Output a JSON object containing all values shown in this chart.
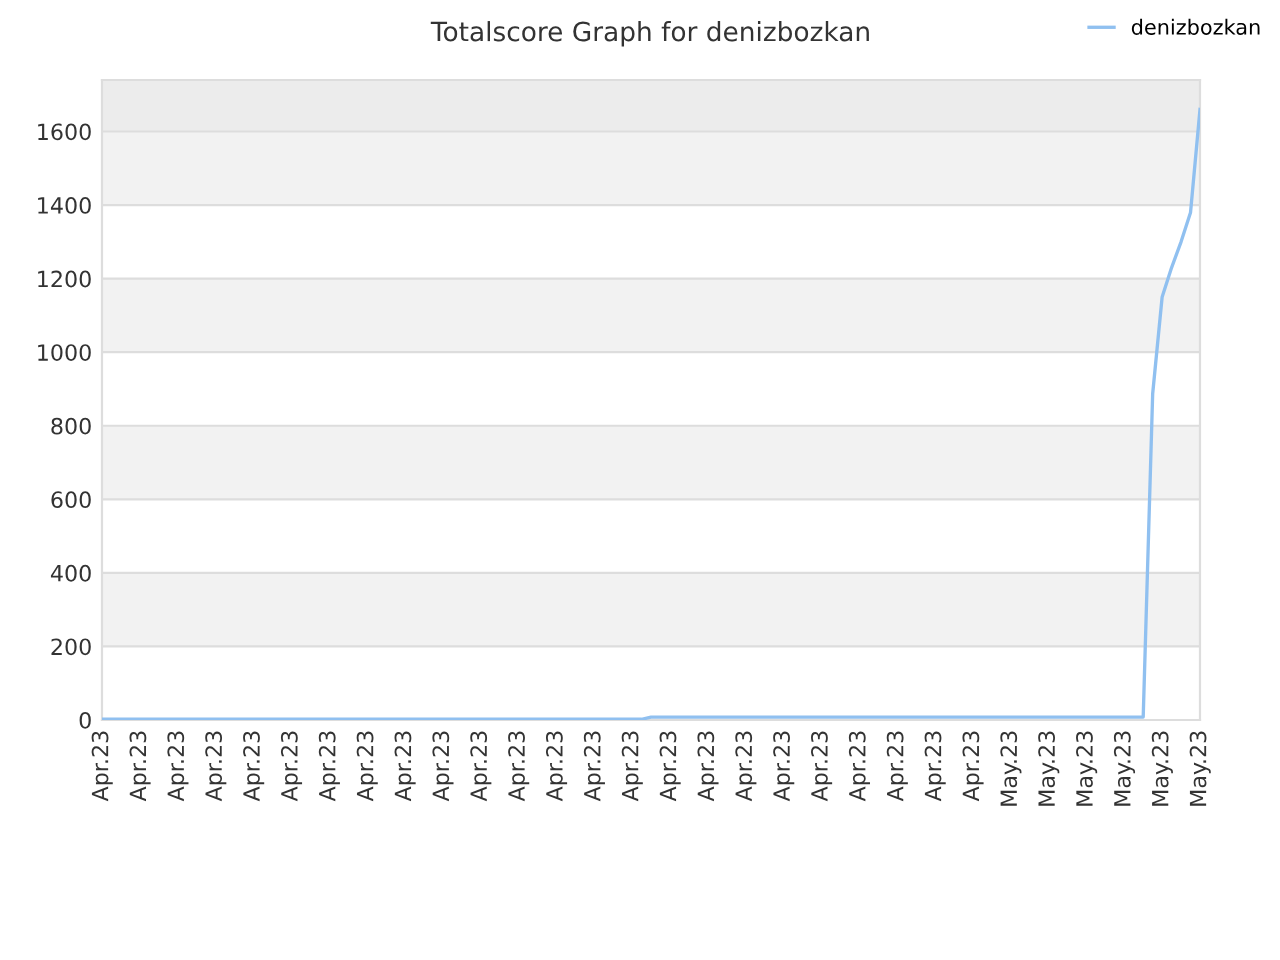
{
  "chart_data": {
    "type": "line",
    "title": "Totalscore Graph for denizbozkan",
    "categories": [
      "Apr.23",
      null,
      null,
      null,
      "Apr.23",
      null,
      null,
      null,
      "Apr.23",
      null,
      null,
      null,
      "Apr.23",
      null,
      null,
      null,
      "Apr.23",
      null,
      null,
      null,
      "Apr.23",
      null,
      null,
      null,
      "Apr.23",
      null,
      null,
      null,
      "Apr.23",
      null,
      null,
      null,
      "Apr.23",
      null,
      null,
      null,
      "Apr.23",
      null,
      null,
      null,
      "Apr.23",
      null,
      null,
      null,
      "Apr.23",
      null,
      null,
      null,
      "Apr.23",
      null,
      null,
      null,
      "Apr.23",
      null,
      null,
      null,
      "Apr.23",
      null,
      null,
      null,
      "Apr.23",
      null,
      null,
      null,
      "Apr.23",
      null,
      null,
      null,
      "Apr.23",
      null,
      null,
      null,
      "Apr.23",
      null,
      null,
      null,
      "Apr.23",
      null,
      null,
      null,
      "Apr.23",
      null,
      null,
      null,
      "Apr.23",
      null,
      null,
      null,
      "Apr.23",
      null,
      null,
      null,
      "Apr.23",
      null,
      null,
      null,
      "May.23",
      null,
      null,
      null,
      "May.23",
      null,
      null,
      null,
      "May.23",
      null,
      null,
      null,
      "May.23",
      null,
      null,
      null,
      "May.23",
      null,
      null,
      null,
      "May.23"
    ],
    "series": [
      {
        "name": "denizbozkan",
        "color": "#90c0f0",
        "values": [
          2,
          2,
          2,
          2,
          2,
          2,
          2,
          2,
          2,
          2,
          2,
          2,
          2,
          2,
          2,
          2,
          2,
          2,
          2,
          2,
          2,
          2,
          2,
          2,
          2,
          2,
          2,
          2,
          2,
          2,
          2,
          2,
          2,
          2,
          2,
          2,
          2,
          2,
          2,
          2,
          2,
          2,
          2,
          2,
          2,
          2,
          2,
          2,
          2,
          2,
          2,
          2,
          2,
          2,
          2,
          2,
          2,
          2,
          8,
          8,
          8,
          8,
          8,
          8,
          8,
          8,
          8,
          8,
          8,
          8,
          8,
          8,
          8,
          8,
          8,
          8,
          8,
          8,
          8,
          8,
          8,
          8,
          8,
          8,
          8,
          8,
          8,
          8,
          8,
          8,
          8,
          8,
          8,
          8,
          8,
          8,
          8,
          8,
          8,
          8,
          8,
          8,
          8,
          8,
          8,
          8,
          8,
          8,
          8,
          8,
          8,
          887,
          1150,
          1230,
          1300,
          1380,
          1660
        ]
      }
    ],
    "ylim": [
      0,
      1740
    ],
    "yticks": [
      0,
      200,
      400,
      600,
      800,
      1000,
      1200,
      1400,
      1600
    ],
    "bands": [
      {
        "axis": "y",
        "from": 200,
        "to": 400,
        "color": "#f2f2f2"
      },
      {
        "axis": "y",
        "from": 600,
        "to": 800,
        "color": "#f2f2f2"
      },
      {
        "axis": "y",
        "from": 1000,
        "to": 1200,
        "color": "#f2f2f2"
      },
      {
        "axis": "y",
        "from": 1400,
        "to": 1600,
        "color": "#f2f2f2"
      },
      {
        "axis": "y",
        "from": 1600,
        "to": 1740,
        "color": "#ececec"
      }
    ],
    "grid": "y",
    "legend": "top right"
  }
}
